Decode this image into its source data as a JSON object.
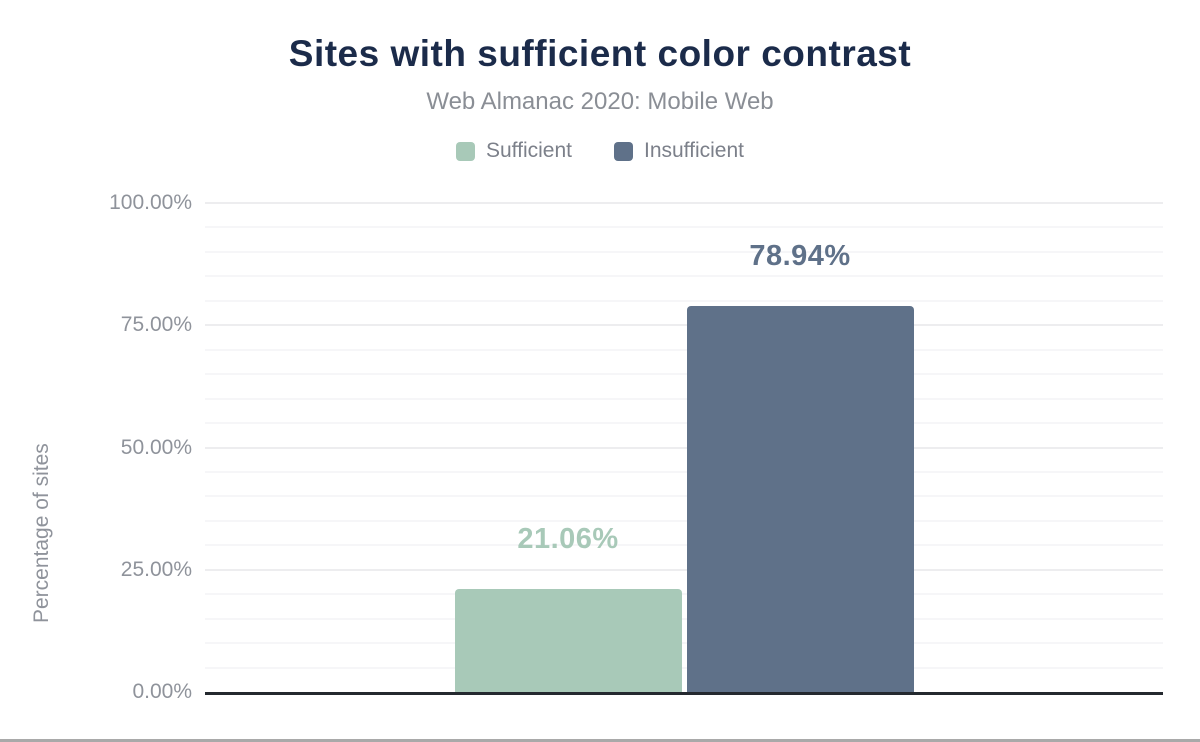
{
  "chart_data": {
    "type": "bar",
    "title": "Sites with sufficient color contrast",
    "subtitle": "Web Almanac 2020: Mobile Web",
    "categories": [
      "Sufficient",
      "Insufficient"
    ],
    "values": [
      21.06,
      78.94
    ],
    "value_labels": [
      "21.06%",
      "78.94%"
    ],
    "colors": [
      "#a8c9b8",
      "#5f7189"
    ],
    "xlabel": "",
    "ylabel": "Percentage of sites",
    "ylim": [
      0,
      100
    ],
    "y_ticks": [
      {
        "value": 0,
        "label": "0.00%"
      },
      {
        "value": 25,
        "label": "25.00%"
      },
      {
        "value": 50,
        "label": "50.00%"
      },
      {
        "value": 75,
        "label": "75.00%"
      },
      {
        "value": 100,
        "label": "100.00%"
      }
    ],
    "grid": {
      "on": true,
      "minor_step_pct": 5,
      "major_step_pct": 25
    },
    "legend": {
      "position": "top",
      "items": [
        {
          "label": "Sufficient",
          "color": "#a8c9b8"
        },
        {
          "label": "Insufficient",
          "color": "#5f7189"
        }
      ]
    },
    "theme": {
      "title_color": "#1b2b4a",
      "subtitle_color": "#8a8e95",
      "tick_color": "#8f939b",
      "axis_line_color": "#24292f",
      "minor_grid_color": "#f6f6f8",
      "major_grid_color": "#ededef",
      "background": "#ffffff",
      "bottom_divider_color": "#a9a9a9"
    }
  }
}
